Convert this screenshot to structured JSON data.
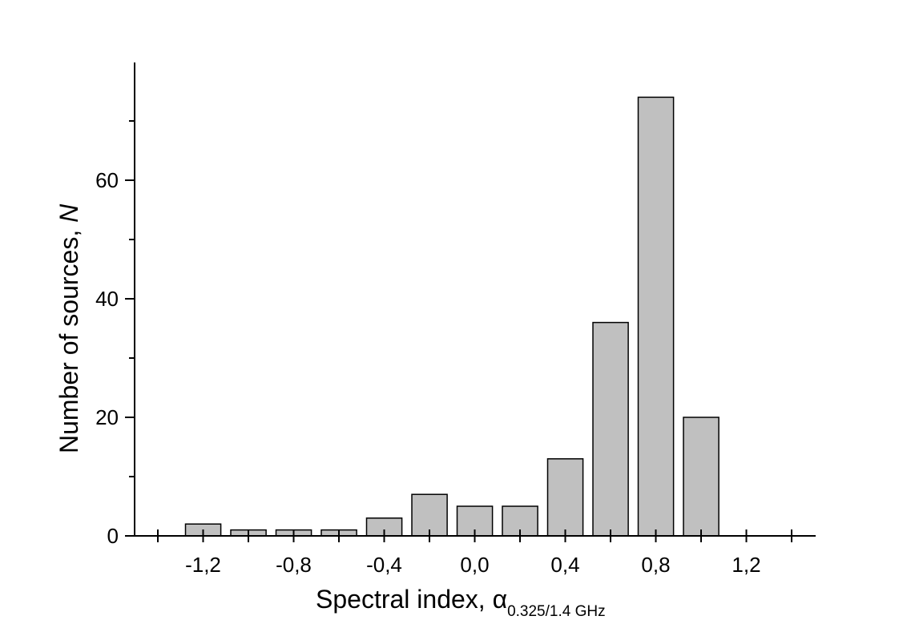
{
  "chart_data": {
    "type": "bar",
    "x_centers": [
      -1.2,
      -1.0,
      -0.8,
      -0.6,
      -0.4,
      -0.2,
      0.0,
      0.2,
      0.4,
      0.6,
      0.8,
      1.0
    ],
    "values": [
      2,
      1,
      1,
      1,
      3,
      7,
      5,
      5,
      13,
      36,
      74,
      20
    ],
    "bin_width": 0.2,
    "xlim": [
      -1.5,
      1.5
    ],
    "ylim": [
      0,
      80
    ],
    "x_tick_labels": [
      "-1,2",
      "-0,8",
      "-0,4",
      "0,0",
      "0,4",
      "0,8",
      "1,2"
    ],
    "x_tick_values": [
      -1.2,
      -0.8,
      -0.4,
      0.0,
      0.4,
      0.8,
      1.2
    ],
    "y_ticks": [
      0,
      20,
      40,
      60
    ],
    "xlabel": "Spectral index, α",
    "xlabel_subscript": "0.325/1.4 GHz",
    "ylabel_prefix": "Number of sources, ",
    "ylabel_italic": "N",
    "bar_color": "#c0c0c0",
    "edge_color": "#000000",
    "grid": false
  }
}
